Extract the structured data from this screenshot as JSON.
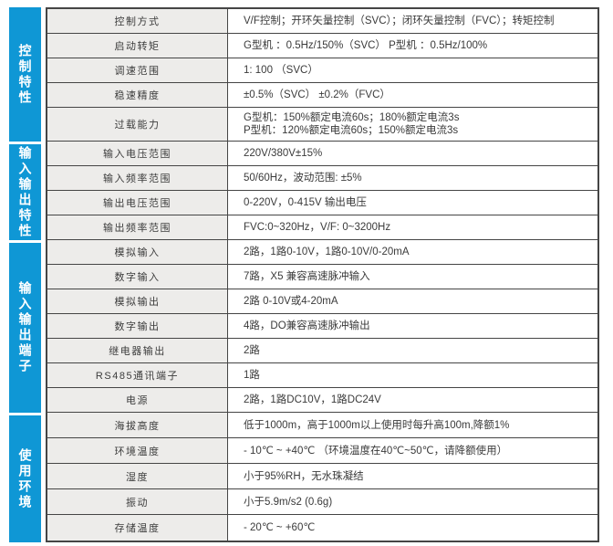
{
  "table": {
    "sections": [
      {
        "category": "控制特性",
        "rows": [
          {
            "label": "控制方式",
            "value": "V/F控制；开环矢量控制（SVC）；闭环矢量控制（FVC）；转矩控制"
          },
          {
            "label": "启动转矩",
            "value": "G型机 ：0.5Hz/150%（SVC）  P型机 ：0.5Hz/100%"
          },
          {
            "label": "调速范围",
            "value": "1: 100 （SVC）"
          },
          {
            "label": "稳速精度",
            "value": "±0.5%（SVC）  ±0.2%（FVC）"
          },
          {
            "label": "过载能力",
            "value": "G型机：150%额定电流60s；180%额定电流3s\nP型机：120%额定电流60s；150%额定电流3s"
          }
        ]
      },
      {
        "category": "输入输出特性",
        "rows": [
          {
            "label": "输入电压范围",
            "value": "220V/380V±15%"
          },
          {
            "label": "输入频率范围",
            "value": "50/60Hz，波动范围: ±5%"
          },
          {
            "label": "输出电压范围",
            "value": "0-220V，0-415V 输出电压"
          },
          {
            "label": "输出频率范围",
            "value": "FVC:0~320Hz，V/F: 0~3200Hz"
          }
        ]
      },
      {
        "category": "输入输出端子",
        "rows": [
          {
            "label": "模拟输入",
            "value": "2路，1路0-10V，1路0-10V/0-20mA"
          },
          {
            "label": "数字输入",
            "value": "7路，X5 兼容高速脉冲输入"
          },
          {
            "label": "模拟输出",
            "value": "2路 0-10V或4-20mA"
          },
          {
            "label": "数字输出",
            "value": "4路，DO兼容高速脉冲输出"
          },
          {
            "label": "继电器输出",
            "value": "2路"
          },
          {
            "label": "RS485通讯端子",
            "value": "1路"
          },
          {
            "label": "电源",
            "value": "2路，1路DC10V，1路DC24V"
          }
        ]
      },
      {
        "category": "使用环境",
        "rows": [
          {
            "label": "海拔高度",
            "value": "低于1000m，高于1000m以上使用时每升高100m,降额1%"
          },
          {
            "label": "环境温度",
            "value": "- 10℃ ~ +40℃ （环境温度在40℃~50℃，请降额使用）"
          },
          {
            "label": "湿度",
            "value": "小于95%RH，无水珠凝结"
          },
          {
            "label": "振动",
            "value": "小于5.9m/s2 (0.6g)"
          },
          {
            "label": "存储温度",
            "value": "- 20℃ ~ +60℃"
          }
        ]
      }
    ]
  },
  "colors": {
    "accent_blue": "#0f97d5",
    "cell_gray": "#edecea",
    "border_dark": "#454545"
  }
}
